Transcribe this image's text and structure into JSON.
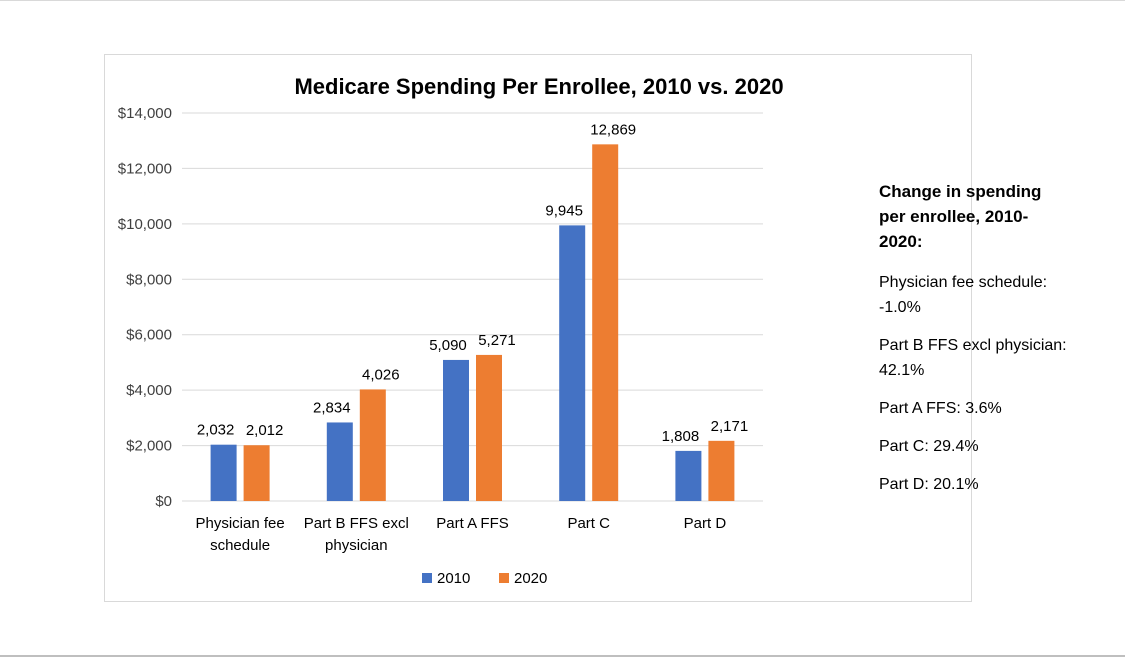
{
  "chart_data": {
    "type": "bar",
    "title": "Medicare Spending Per Enrollee, 2010 vs. 2020",
    "categories": [
      [
        "Physician fee",
        "schedule"
      ],
      [
        "Part B FFS excl",
        "physician"
      ],
      [
        "Part A FFS"
      ],
      [
        "Part C"
      ],
      [
        "Part D"
      ]
    ],
    "series": [
      {
        "name": "2010",
        "color": "#4472c4",
        "values": [
          2032,
          2834,
          5090,
          9945,
          1808
        ],
        "labels": [
          "2,032",
          "2,834",
          "5,090",
          "9,945",
          "1,808"
        ]
      },
      {
        "name": "2020",
        "color": "#ed7d31",
        "values": [
          2012,
          4026,
          5271,
          12869,
          2171
        ],
        "labels": [
          "2,012",
          "4,026",
          "5,271",
          "12,869",
          "2,171"
        ]
      }
    ],
    "ylim": [
      0,
      14000
    ],
    "yticks": [
      0,
      2000,
      4000,
      6000,
      8000,
      10000,
      12000,
      14000
    ],
    "ytick_labels": [
      "$0",
      "$2,000",
      "$4,000",
      "$6,000",
      "$8,000",
      "$10,000",
      "$12,000",
      "$14,000"
    ],
    "xlabel": "",
    "ylabel": "",
    "grid": true,
    "legend": "bottom"
  },
  "side_panel": {
    "heading": "Change in spending per enrollee, 2010-2020:",
    "notes": [
      "Physician fee schedule: -1.0%",
      "Part B FFS excl physician: 42.1%",
      "Part A FFS: 3.6%",
      "Part C: 29.4%",
      "Part D: 20.1%"
    ]
  }
}
